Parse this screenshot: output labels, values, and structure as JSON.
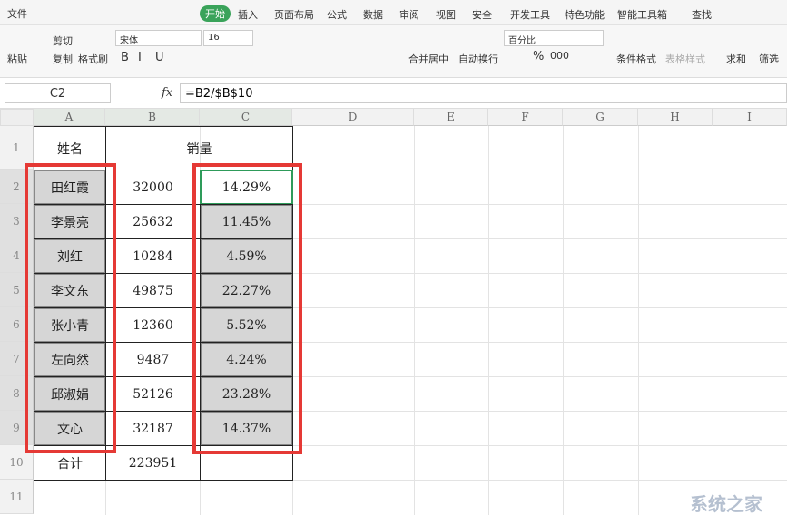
{
  "menu": {
    "file": "文件",
    "tabs": [
      "开始",
      "插入",
      "页面布局",
      "公式",
      "数据",
      "审阅",
      "视图",
      "安全",
      "开发工具",
      "特色功能",
      "智能工具箱"
    ],
    "search": "查找"
  },
  "ribbon": {
    "paste": "粘贴",
    "cut": "剪切",
    "copy": "复制",
    "format_painter": "格式刷",
    "font": "宋体",
    "font_size": "16",
    "bold": "B",
    "italic": "I",
    "underline": "U",
    "merge": "合并居中",
    "wrap": "自动换行",
    "number_format": "百分比",
    "percent": "%",
    "thousands": "000",
    "conditional": "条件格式",
    "table_style": "表格样式",
    "sum": "求和",
    "filter": "筛选"
  },
  "formula_bar": {
    "name_box": "C2",
    "fx": "fx",
    "formula": "=B2/$B$10"
  },
  "grid": {
    "columns": [
      "A",
      "B",
      "C",
      "D",
      "E",
      "F",
      "G",
      "H",
      "I"
    ],
    "rows": [
      "1",
      "2",
      "3",
      "4",
      "5",
      "6",
      "7",
      "8",
      "9",
      "10",
      "11"
    ]
  },
  "table": {
    "header": [
      "姓名",
      "销量"
    ],
    "rows": [
      [
        "田红霞",
        "32000",
        "14.29%"
      ],
      [
        "李景亮",
        "25632",
        "11.45%"
      ],
      [
        "刘红",
        "10284",
        "4.59%"
      ],
      [
        "李文东",
        "49875",
        "22.27%"
      ],
      [
        "张小青",
        "12360",
        "5.52%"
      ],
      [
        "左向然",
        "9487",
        "4.24%"
      ],
      [
        "邱淑娟",
        "52126",
        "23.28%"
      ],
      [
        "文心",
        "32187",
        "14.37%"
      ]
    ],
    "total": [
      "合计",
      "223951"
    ]
  },
  "watermark": "系统之家"
}
